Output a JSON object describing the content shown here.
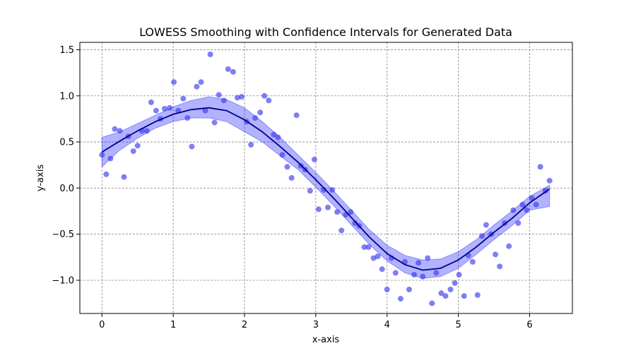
{
  "chart_data": {
    "type": "scatter",
    "title": "LOWESS Smoothing with Confidence Intervals for Generated Data",
    "xlabel": "x-axis",
    "ylabel": "y-axis",
    "xlim": [
      -0.31,
      6.6
    ],
    "ylim": [
      -1.36,
      1.58
    ],
    "xticks": [
      0,
      1,
      2,
      3,
      4,
      5,
      6
    ],
    "yticks": [
      -1.0,
      -0.5,
      0.0,
      0.5,
      1.0,
      1.5
    ],
    "xtick_labels": [
      "0",
      "1",
      "2",
      "3",
      "4",
      "5",
      "6"
    ],
    "ytick_labels": [
      "−1.0",
      "−0.5",
      "0.0",
      "0.5",
      "1.0",
      "1.5"
    ],
    "grid": true,
    "colors": {
      "points": "#3b3bef",
      "line": "#00008b",
      "band": "#0000ff"
    },
    "points": [
      [
        0.0,
        0.36
      ],
      [
        0.06,
        0.15
      ],
      [
        0.12,
        0.32
      ],
      [
        0.18,
        0.64
      ],
      [
        0.25,
        0.62
      ],
      [
        0.31,
        0.12
      ],
      [
        0.37,
        0.56
      ],
      [
        0.44,
        0.4
      ],
      [
        0.5,
        0.46
      ],
      [
        0.56,
        0.62
      ],
      [
        0.63,
        0.62
      ],
      [
        0.69,
        0.93
      ],
      [
        0.76,
        0.84
      ],
      [
        0.82,
        0.75
      ],
      [
        0.88,
        0.86
      ],
      [
        0.95,
        0.87
      ],
      [
        1.01,
        1.15
      ],
      [
        1.07,
        0.84
      ],
      [
        1.14,
        0.97
      ],
      [
        1.2,
        0.76
      ],
      [
        1.26,
        0.45
      ],
      [
        1.33,
        1.1
      ],
      [
        1.39,
        1.15
      ],
      [
        1.45,
        0.84
      ],
      [
        1.52,
        1.45
      ],
      [
        1.58,
        0.71
      ],
      [
        1.64,
        1.01
      ],
      [
        1.71,
        0.95
      ],
      [
        1.77,
        1.29
      ],
      [
        1.84,
        1.26
      ],
      [
        1.9,
        0.98
      ],
      [
        1.96,
        0.99
      ],
      [
        2.03,
        0.72
      ],
      [
        2.09,
        0.47
      ],
      [
        2.15,
        0.76
      ],
      [
        2.22,
        0.82
      ],
      [
        2.28,
        1.0
      ],
      [
        2.34,
        0.95
      ],
      [
        2.41,
        0.58
      ],
      [
        2.47,
        0.55
      ],
      [
        2.53,
        0.36
      ],
      [
        2.6,
        0.23
      ],
      [
        2.66,
        0.11
      ],
      [
        2.73,
        0.79
      ],
      [
        2.79,
        0.24
      ],
      [
        2.85,
        0.2
      ],
      [
        2.92,
        -0.03
      ],
      [
        2.98,
        0.31
      ],
      [
        3.04,
        -0.23
      ],
      [
        3.11,
        -0.02
      ],
      [
        3.17,
        -0.21
      ],
      [
        3.23,
        -0.02
      ],
      [
        3.3,
        -0.26
      ],
      [
        3.36,
        -0.46
      ],
      [
        3.42,
        -0.29
      ],
      [
        3.49,
        -0.26
      ],
      [
        3.55,
        -0.38
      ],
      [
        3.61,
        -0.41
      ],
      [
        3.68,
        -0.64
      ],
      [
        3.74,
        -0.64
      ],
      [
        3.81,
        -0.76
      ],
      [
        3.87,
        -0.74
      ],
      [
        3.93,
        -0.88
      ],
      [
        4.0,
        -1.1
      ],
      [
        4.06,
        -0.76
      ],
      [
        4.12,
        -0.92
      ],
      [
        4.19,
        -1.2
      ],
      [
        4.25,
        -0.8
      ],
      [
        4.31,
        -1.1
      ],
      [
        4.38,
        -0.94
      ],
      [
        4.44,
        -0.81
      ],
      [
        4.5,
        -0.96
      ],
      [
        4.57,
        -0.76
      ],
      [
        4.63,
        -1.25
      ],
      [
        4.69,
        -0.92
      ],
      [
        4.76,
        -1.14
      ],
      [
        4.82,
        -1.17
      ],
      [
        4.89,
        -1.1
      ],
      [
        4.95,
        -1.03
      ],
      [
        5.01,
        -0.94
      ],
      [
        5.08,
        -1.17
      ],
      [
        5.14,
        -0.73
      ],
      [
        5.2,
        -0.8
      ],
      [
        5.27,
        -1.16
      ],
      [
        5.33,
        -0.52
      ],
      [
        5.39,
        -0.4
      ],
      [
        5.46,
        -0.5
      ],
      [
        5.52,
        -0.72
      ],
      [
        5.58,
        -0.85
      ],
      [
        5.65,
        -0.38
      ],
      [
        5.71,
        -0.63
      ],
      [
        5.77,
        -0.24
      ],
      [
        5.84,
        -0.38
      ],
      [
        5.9,
        -0.18
      ],
      [
        5.96,
        -0.24
      ],
      [
        6.03,
        -0.11
      ],
      [
        6.09,
        -0.18
      ],
      [
        6.15,
        0.23
      ],
      [
        6.22,
        -0.03
      ],
      [
        6.28,
        0.08
      ]
    ],
    "lowess_line": [
      [
        0.0,
        0.39
      ],
      [
        0.25,
        0.51
      ],
      [
        0.5,
        0.62
      ],
      [
        0.75,
        0.72
      ],
      [
        1.0,
        0.8
      ],
      [
        1.25,
        0.85
      ],
      [
        1.5,
        0.87
      ],
      [
        1.75,
        0.84
      ],
      [
        2.0,
        0.74
      ],
      [
        2.25,
        0.61
      ],
      [
        2.5,
        0.45
      ],
      [
        2.75,
        0.28
      ],
      [
        3.0,
        0.09
      ],
      [
        3.25,
        -0.11
      ],
      [
        3.5,
        -0.32
      ],
      [
        3.75,
        -0.53
      ],
      [
        4.0,
        -0.71
      ],
      [
        4.25,
        -0.83
      ],
      [
        4.5,
        -0.89
      ],
      [
        4.75,
        -0.87
      ],
      [
        5.0,
        -0.78
      ],
      [
        5.25,
        -0.64
      ],
      [
        5.5,
        -0.48
      ],
      [
        5.75,
        -0.33
      ],
      [
        6.0,
        -0.16
      ],
      [
        6.28,
        -0.01
      ]
    ],
    "ci_upper": [
      [
        0.0,
        0.55
      ],
      [
        0.25,
        0.61
      ],
      [
        0.5,
        0.7
      ],
      [
        0.75,
        0.79
      ],
      [
        1.0,
        0.88
      ],
      [
        1.25,
        0.95
      ],
      [
        1.5,
        0.99
      ],
      [
        1.75,
        0.96
      ],
      [
        2.0,
        0.87
      ],
      [
        2.25,
        0.72
      ],
      [
        2.5,
        0.55
      ],
      [
        2.75,
        0.36
      ],
      [
        3.0,
        0.17
      ],
      [
        3.25,
        -0.03
      ],
      [
        3.5,
        -0.24
      ],
      [
        3.75,
        -0.45
      ],
      [
        4.0,
        -0.62
      ],
      [
        4.25,
        -0.73
      ],
      [
        4.5,
        -0.78
      ],
      [
        4.75,
        -0.77
      ],
      [
        5.0,
        -0.69
      ],
      [
        5.25,
        -0.56
      ],
      [
        5.5,
        -0.4
      ],
      [
        5.75,
        -0.25
      ],
      [
        6.0,
        -0.09
      ],
      [
        6.28,
        0.03
      ]
    ],
    "ci_lower": [
      [
        0.0,
        0.23
      ],
      [
        0.25,
        0.41
      ],
      [
        0.5,
        0.54
      ],
      [
        0.75,
        0.65
      ],
      [
        1.0,
        0.72
      ],
      [
        1.25,
        0.76
      ],
      [
        1.5,
        0.76
      ],
      [
        1.75,
        0.72
      ],
      [
        2.0,
        0.61
      ],
      [
        2.25,
        0.5
      ],
      [
        2.5,
        0.35
      ],
      [
        2.75,
        0.2
      ],
      [
        3.0,
        0.01
      ],
      [
        3.25,
        -0.19
      ],
      [
        3.5,
        -0.4
      ],
      [
        3.75,
        -0.61
      ],
      [
        4.0,
        -0.79
      ],
      [
        4.25,
        -0.92
      ],
      [
        4.5,
        -0.98
      ],
      [
        4.75,
        -0.96
      ],
      [
        5.0,
        -0.87
      ],
      [
        5.25,
        -0.72
      ],
      [
        5.5,
        -0.56
      ],
      [
        5.75,
        -0.41
      ],
      [
        6.0,
        -0.24
      ],
      [
        6.28,
        -0.2
      ]
    ]
  }
}
